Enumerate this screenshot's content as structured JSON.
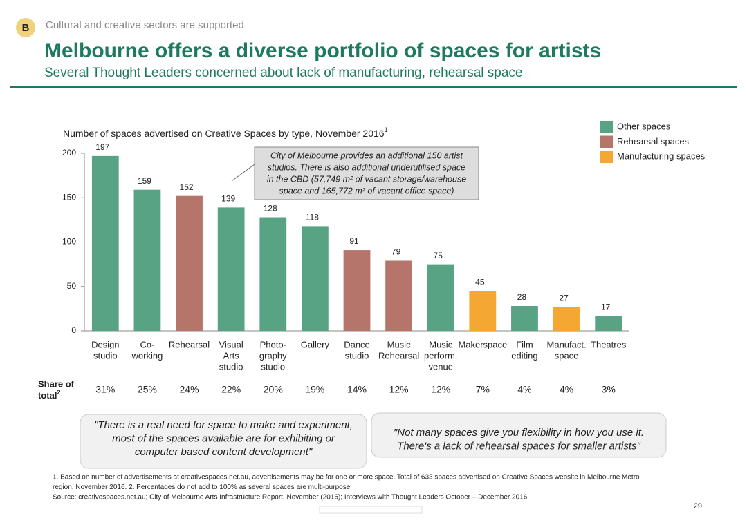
{
  "header": {
    "badge": "B",
    "kicker": "Cultural and creative sectors are supported",
    "title": "Melbourne offers a diverse portfolio of spaces for artists",
    "subtitle": "Several Thought Leaders concerned about lack of manufacturing, rehearsal space"
  },
  "chart_data": {
    "type": "bar",
    "title": "Number of spaces advertised on Creative Spaces by type, November 2016",
    "title_note": "1",
    "categories": [
      [
        "Design",
        "studio"
      ],
      [
        "Co-",
        "working"
      ],
      [
        "Rehearsal"
      ],
      [
        "Visual",
        "Arts",
        "studio"
      ],
      [
        "Photo-",
        "graphy",
        "studio"
      ],
      [
        "Gallery"
      ],
      [
        "Dance",
        "studio"
      ],
      [
        "Music",
        "Rehearsal"
      ],
      [
        "Music",
        "perform.",
        "venue"
      ],
      [
        "Makerspace"
      ],
      [
        "Film",
        "editing"
      ],
      [
        "Manufact.",
        "space"
      ],
      [
        "Theatres"
      ]
    ],
    "values": [
      197,
      159,
      152,
      139,
      128,
      118,
      91,
      79,
      75,
      45,
      28,
      27,
      17
    ],
    "colors": [
      "#58a383",
      "#58a383",
      "#b5756a",
      "#58a383",
      "#58a383",
      "#58a383",
      "#b5756a",
      "#b5756a",
      "#58a383",
      "#f5a733",
      "#58a383",
      "#f5a733",
      "#58a383"
    ],
    "ylim": [
      0,
      200
    ],
    "yticks": [
      0,
      50,
      100,
      150,
      200
    ],
    "legend": [
      {
        "name": "Other spaces",
        "color": "#58a383"
      },
      {
        "name": "Rehearsal spaces",
        "color": "#b5756a"
      },
      {
        "name": "Manufacturing spaces",
        "color": "#f5a733"
      }
    ],
    "annotation": [
      "City of Melbourne provides an additional 150 artist",
      "studios. There is also additional underutilised space",
      "in the CBD (57,749 m² of vacant storage/warehouse",
      "space and 165,772 m² of vacant office space)"
    ],
    "share_label": [
      "Share of",
      "total"
    ],
    "share_note": "2",
    "shares": [
      31,
      25,
      24,
      22,
      20,
      19,
      14,
      12,
      12,
      7,
      4,
      4,
      3
    ],
    "share_labels": [
      "31%",
      "25%",
      "24%",
      "22%",
      "20%",
      "19%",
      "14%",
      "12%",
      "12%",
      "7%",
      "4%",
      "4%",
      "3%"
    ]
  },
  "quotes": [
    [
      "\"There is a real need for space to make and experiment,",
      "most of the spaces available are for exhibiting or",
      "computer based content development\""
    ],
    [
      "\"Not many spaces give you flexibility in how you use it.",
      "There's a lack of rehearsal spaces for smaller artists\""
    ]
  ],
  "footnotes": [
    "1. Based on number of advertisements at creativespaces.net.au, advertisements may be for one or more space. Total of 633 spaces advertised on Creative Spaces website in Melbourne Metro",
    "region, November 2016. 2. Percentages do not add to 100% as several spaces are multi-purpose",
    "Source: creativespaces.net.au; City of Melbourne Arts Infrastructure Report, November (2016); Interviews with Thought Leaders October – December 2016"
  ],
  "page_number": "29"
}
